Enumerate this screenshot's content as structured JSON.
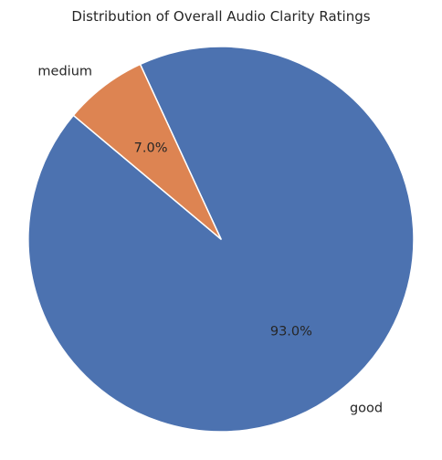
{
  "chart_data": {
    "type": "pie",
    "title": "Distribution of Overall Audio Clarity Ratings",
    "slices": [
      {
        "label": "good",
        "value": 93.0,
        "percent_label": "93.0%",
        "color": "#4c72b0"
      },
      {
        "label": "medium",
        "value": 7.0,
        "percent_label": "7.0%",
        "color": "#dd8452"
      }
    ],
    "start_angle_deg": 140,
    "direction": "counterclockwise",
    "edge_color": "#ffffff"
  }
}
